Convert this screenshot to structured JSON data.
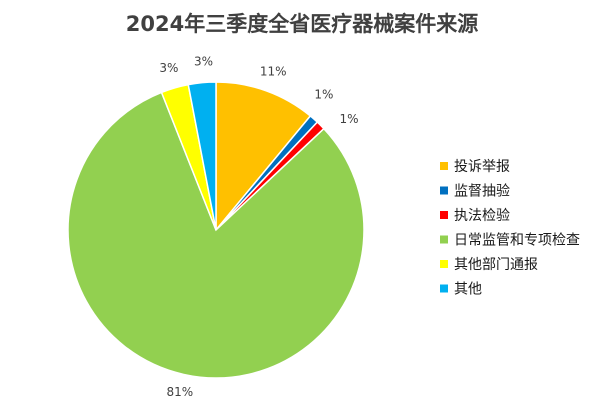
{
  "chart_data": {
    "type": "pie",
    "title": "2024年三季度全省医疗器械案件来源",
    "legend_position": "right",
    "slices": [
      {
        "label": "投诉举报",
        "value": 11,
        "display": "11%",
        "color": "#FFC000"
      },
      {
        "label": "监督抽验",
        "value": 1,
        "display": "1%",
        "color": "#0070C0"
      },
      {
        "label": "执法检验",
        "value": 1,
        "display": "1%",
        "color": "#FF0000"
      },
      {
        "label": "日常监管和专项检查",
        "value": 81,
        "display": "81%",
        "color": "#92D050"
      },
      {
        "label": "其他部门通报",
        "value": 3,
        "display": "3%",
        "color": "#FFFF00"
      },
      {
        "label": "其他",
        "value": 3,
        "display": "3%",
        "color": "#00B0F0"
      }
    ]
  }
}
